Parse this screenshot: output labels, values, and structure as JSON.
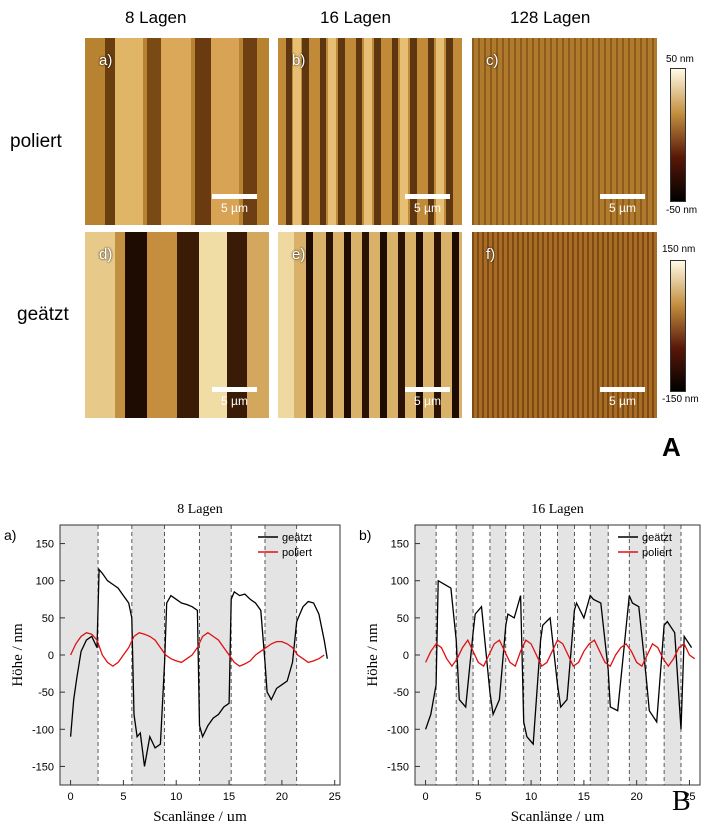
{
  "panel_A": {
    "label": "A",
    "column_titles": [
      "8 Lagen",
      "16 Lagen",
      "128 Lagen"
    ],
    "row_labels": [
      "poliert",
      "geätzt"
    ],
    "images": [
      {
        "tag": "a)",
        "scalebar": "5 µm"
      },
      {
        "tag": "b)",
        "scalebar": "5 µm"
      },
      {
        "tag": "c)",
        "scalebar": "5 µm"
      },
      {
        "tag": "d)",
        "scalebar": "5 µm"
      },
      {
        "tag": "e)",
        "scalebar": "5 µm"
      },
      {
        "tag": "f)",
        "scalebar": "5 µm"
      }
    ],
    "colorbars": [
      {
        "top": "50 nm",
        "bottom": "-50 nm"
      },
      {
        "top": "150 nm",
        "bottom": "-150 nm"
      }
    ],
    "colors": {
      "dark": "#1a0b02",
      "mid": "#8a5a1a",
      "light": "#f5e6b0"
    }
  },
  "panel_B": {
    "label": "B",
    "chart_data": [
      {
        "type": "line",
        "panel_tag": "a)",
        "title": "8 Lagen",
        "xlabel": "Scanlänge  /  µm",
        "ylabel": "Höhe  /  nm",
        "xlim": [
          -1,
          25.5
        ],
        "ylim": [
          -175,
          175
        ],
        "xticks": [
          0,
          5,
          10,
          15,
          20,
          25
        ],
        "yticks": [
          -150,
          -100,
          -50,
          0,
          50,
          100,
          150
        ],
        "legend_position": "top-right",
        "shaded_bands": [
          [
            -1,
            2.6
          ],
          [
            5.8,
            8.9
          ],
          [
            12.2,
            15.2
          ],
          [
            18.4,
            21.4
          ]
        ],
        "dashed_lines": [
          2.6,
          5.8,
          8.9,
          12.2,
          15.2,
          18.4,
          21.4
        ],
        "series": [
          {
            "name": "geätzt",
            "color": "#000000",
            "x": [
              0,
              0.3,
              0.6,
              1,
              1.5,
              2,
              2.5,
              2.7,
              3,
              3.5,
              4,
              4.5,
              5,
              5.5,
              5.8,
              6,
              6.3,
              6.6,
              7,
              7.5,
              8,
              8.5,
              8.9,
              9.1,
              9.5,
              10,
              10.5,
              11,
              11.5,
              12,
              12.2,
              12.5,
              13,
              13.5,
              14,
              14.5,
              15,
              15.2,
              15.5,
              16,
              16.5,
              17,
              17.5,
              18,
              18.4,
              18.6,
              19,
              19.5,
              20,
              20.5,
              21,
              21.4,
              21.7,
              22,
              22.5,
              23,
              23.5,
              24,
              24.3
            ],
            "y": [
              -110,
              -60,
              -30,
              5,
              20,
              25,
              10,
              115,
              110,
              100,
              95,
              90,
              80,
              70,
              50,
              -80,
              -110,
              -105,
              -150,
              -110,
              -125,
              -120,
              -10,
              70,
              80,
              75,
              70,
              68,
              65,
              60,
              -95,
              -110,
              -95,
              -85,
              -80,
              -70,
              -65,
              75,
              85,
              80,
              82,
              75,
              70,
              60,
              -10,
              -50,
              -60,
              -45,
              -40,
              -35,
              -10,
              45,
              55,
              65,
              72,
              70,
              55,
              20,
              -5
            ]
          },
          {
            "name": "poliert",
            "color": "#e01010",
            "x": [
              0,
              0.5,
              1,
              1.5,
              2,
              2.5,
              3,
              3.5,
              4,
              4.5,
              5,
              5.5,
              6,
              6.5,
              7,
              7.5,
              8,
              8.5,
              9,
              9.5,
              10,
              10.5,
              11,
              11.5,
              12,
              12.5,
              13,
              13.5,
              14,
              14.5,
              15,
              15.5,
              16,
              16.5,
              17,
              17.5,
              18,
              18.5,
              19,
              19.5,
              20,
              20.5,
              21,
              21.5,
              22,
              22.5,
              23,
              23.5,
              24
            ],
            "y": [
              0,
              15,
              25,
              30,
              28,
              20,
              0,
              -10,
              -15,
              -10,
              0,
              10,
              25,
              30,
              28,
              25,
              20,
              10,
              0,
              -5,
              -8,
              -10,
              -5,
              0,
              10,
              25,
              30,
              25,
              20,
              10,
              0,
              -10,
              -15,
              -12,
              -8,
              0,
              5,
              10,
              15,
              18,
              18,
              15,
              10,
              0,
              -5,
              -10,
              -8,
              -5,
              0
            ]
          }
        ]
      },
      {
        "type": "line",
        "panel_tag": "b)",
        "title": "16 Lagen",
        "xlabel": "Scanlänge  /  µm",
        "ylabel": "Höhe  /  nm",
        "xlim": [
          -1,
          26
        ],
        "ylim": [
          -175,
          175
        ],
        "xticks": [
          0,
          5,
          10,
          15,
          20,
          25
        ],
        "yticks": [
          -150,
          -100,
          -50,
          0,
          50,
          100,
          150
        ],
        "legend_position": "top-right",
        "shaded_bands": [
          [
            -1,
            1.0
          ],
          [
            2.9,
            4.5
          ],
          [
            6.1,
            7.6
          ],
          [
            9.3,
            10.9
          ],
          [
            12.5,
            14.1
          ],
          [
            15.6,
            17.3
          ],
          [
            19.3,
            20.9
          ],
          [
            22.6,
            24.2
          ]
        ],
        "dashed_lines": [
          1.0,
          2.9,
          4.5,
          6.1,
          7.6,
          9.3,
          10.9,
          12.5,
          14.1,
          15.6,
          17.3,
          19.3,
          20.9,
          22.6,
          24.2
        ],
        "series": [
          {
            "name": "geätzt",
            "color": "#000000",
            "x": [
              0,
              0.5,
              1.0,
              1.2,
              1.8,
              2.4,
              2.9,
              3.2,
              3.8,
              4.5,
              4.7,
              5.3,
              6.1,
              6.4,
              7.0,
              7.6,
              7.8,
              8.4,
              9.0,
              9.3,
              9.6,
              10.2,
              10.9,
              11.1,
              11.8,
              12.5,
              12.8,
              13.4,
              14.1,
              14.3,
              15.0,
              15.6,
              15.9,
              16.6,
              17.3,
              17.5,
              18.2,
              19.3,
              19.6,
              20.2,
              20.9,
              21.2,
              21.9,
              22.6,
              22.9,
              23.6,
              24.2,
              24.5,
              25.2
            ],
            "y": [
              -100,
              -80,
              -40,
              100,
              95,
              90,
              20,
              -60,
              -70,
              30,
              55,
              65,
              -50,
              -80,
              -60,
              40,
              55,
              50,
              80,
              -90,
              -110,
              -120,
              20,
              40,
              50,
              -40,
              -70,
              -60,
              60,
              70,
              50,
              80,
              75,
              70,
              -20,
              -70,
              -75,
              80,
              70,
              65,
              -30,
              -75,
              -90,
              40,
              45,
              30,
              -100,
              25,
              10
            ]
          },
          {
            "name": "poliert",
            "color": "#e01010",
            "x": [
              0,
              0.5,
              1,
              1.5,
              2,
              2.5,
              3,
              3.5,
              4,
              4.5,
              5,
              5.5,
              6,
              6.5,
              7,
              7.5,
              8,
              8.5,
              9,
              9.5,
              10,
              10.5,
              11,
              11.5,
              12,
              12.5,
              13,
              13.5,
              14,
              14.5,
              15,
              15.5,
              16,
              16.5,
              17,
              17.5,
              18,
              18.5,
              19,
              19.5,
              20,
              20.5,
              21,
              21.5,
              22,
              22.5,
              23,
              23.5,
              24,
              24.5,
              25,
              25.5
            ],
            "y": [
              -10,
              5,
              15,
              10,
              -5,
              -15,
              -5,
              10,
              20,
              5,
              -10,
              -15,
              0,
              15,
              20,
              5,
              -10,
              -15,
              5,
              20,
              15,
              0,
              -15,
              -10,
              5,
              20,
              15,
              0,
              -15,
              -10,
              5,
              15,
              20,
              5,
              -10,
              -15,
              0,
              10,
              15,
              5,
              -10,
              -15,
              0,
              15,
              10,
              -5,
              -15,
              -5,
              10,
              15,
              0,
              -5
            ]
          }
        ]
      }
    ]
  }
}
